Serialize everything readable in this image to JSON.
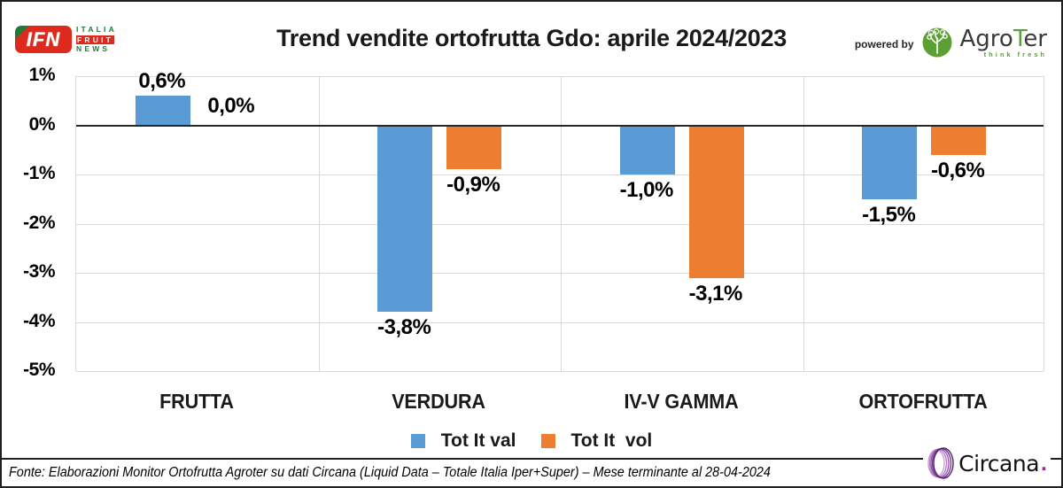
{
  "header": {
    "ifn": {
      "acronym": "IFN",
      "line1": "ITALIA",
      "line2": "FRUIT",
      "line3": "NEWS"
    },
    "title": "Trend vendite ortofrutta Gdo: aprile 2024/2023",
    "powered_by": "powered by",
    "agroter": {
      "part1": "Agro",
      "part2": "T",
      "part3": "er",
      "tagline": "think fresh"
    }
  },
  "chart_data": {
    "type": "bar",
    "title": "Trend vendite ortofrutta Gdo: aprile 2024/2023",
    "categories": [
      "FRUTTA",
      "VERDURA",
      "IV-V GAMMA",
      "ORTOFRUTTA"
    ],
    "series": [
      {
        "name": "Tot It val",
        "color": "#5B9BD5",
        "values": [
          0.6,
          -3.8,
          -1.0,
          -1.5
        ],
        "labels": [
          "0,6%",
          "-3,8%",
          "-1,0%",
          "-1,5%"
        ]
      },
      {
        "name": "Tot It  vol",
        "color": "#ED7D31",
        "values": [
          0.0,
          -0.9,
          -3.1,
          -0.6
        ],
        "labels": [
          "0,0%",
          "-0,9%",
          "-3,1%",
          "-0,6%"
        ]
      }
    ],
    "y_ticks": [
      "1%",
      "0%",
      "-1%",
      "-2%",
      "-3%",
      "-4%",
      "-5%"
    ],
    "ylim": [
      -5,
      1
    ],
    "grid": true,
    "legend_position": "bottom",
    "gridline_color": "#D9D9D9",
    "zero_line_color": "#262626"
  },
  "legend": {
    "items": [
      {
        "label": "Tot It val",
        "color": "#5B9BD5"
      },
      {
        "label": "Tot It  vol",
        "color": "#ED7D31"
      }
    ]
  },
  "footer": {
    "source": "Fonte: Elaborazioni Monitor Ortofrutta Agroter su dati Circana (Liquid Data – Totale Italia Iper+Super) – Mese terminante al 28-04-2024",
    "circana_name": "Circana",
    "circana_dot": "."
  }
}
